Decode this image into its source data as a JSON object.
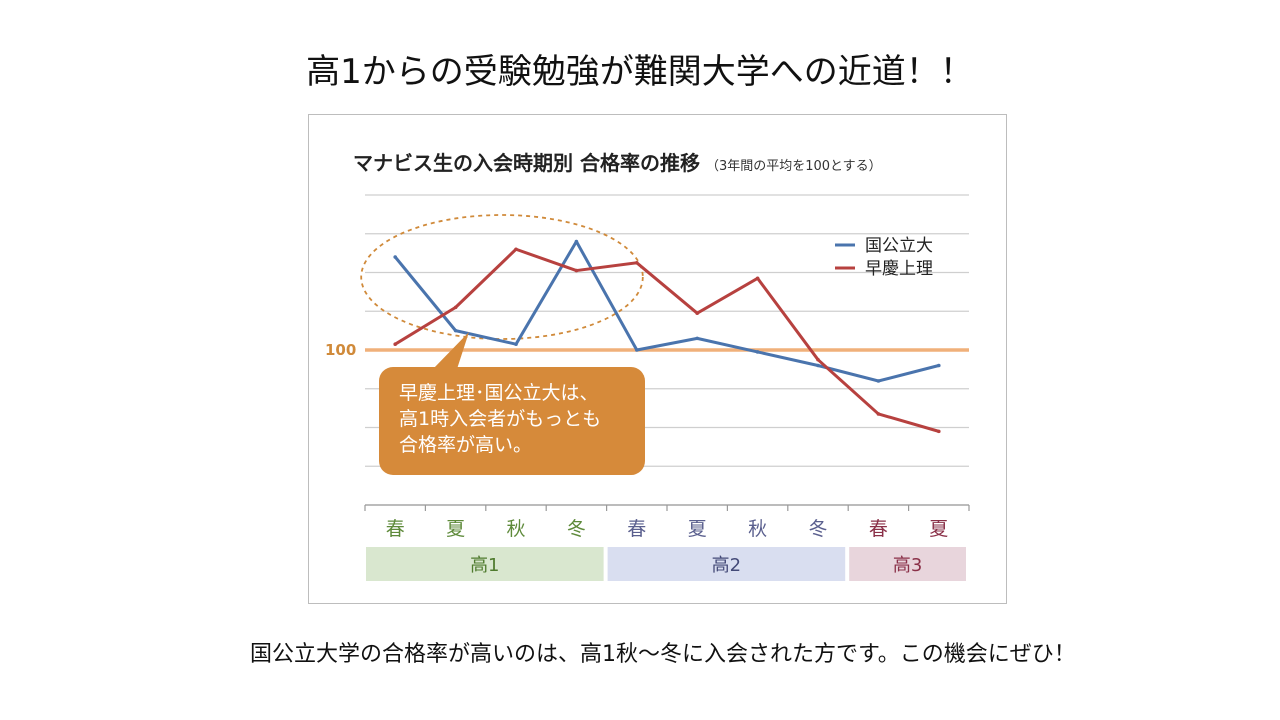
{
  "slide": {
    "title": "高1からの受験勉強が難関大学への近道！！",
    "footer": "国公立大学の合格率が高いのは、高1秋～冬に入会された方です。この機会にぜひ！"
  },
  "chart_data": {
    "type": "line",
    "title": "マナビス生の入会時期別 合格率の推移",
    "subtitle": "（3年間の平均を100とする）",
    "categories": [
      "春",
      "夏",
      "秋",
      "冬",
      "春",
      "夏",
      "秋",
      "冬",
      "春",
      "夏"
    ],
    "category_colors": [
      "#5e8a3a",
      "#5e8a3a",
      "#5e8a3a",
      "#5e8a3a",
      "#5a5f8e",
      "#5a5f8e",
      "#5a5f8e",
      "#5a5f8e",
      "#8a3048",
      "#8a3048"
    ],
    "groups": [
      {
        "label": "高1",
        "start": 0,
        "end": 3,
        "fill": "#d9e7cf",
        "text_color": "#4f7b2e"
      },
      {
        "label": "高2",
        "start": 4,
        "end": 7,
        "fill": "#d9def0",
        "text_color": "#444a78"
      },
      {
        "label": "高3",
        "start": 8,
        "end": 9,
        "fill": "#e8d5dc",
        "text_color": "#8a3048"
      }
    ],
    "series": [
      {
        "name": "国公立大",
        "color": "#4a74ad",
        "values": [
          148,
          110,
          103,
          156,
          100,
          106,
          99,
          92,
          84,
          92
        ]
      },
      {
        "name": "早慶上理",
        "color": "#b7413f",
        "values": [
          103,
          122,
          152,
          141,
          145,
          119,
          137,
          95,
          67,
          58
        ]
      }
    ],
    "ylim": [
      20,
      180
    ],
    "yticks": [
      20,
      40,
      60,
      80,
      100,
      120,
      140,
      160,
      180
    ],
    "reference_line": {
      "value": 100,
      "label": "100",
      "color": "#f0b07a"
    },
    "grid": true,
    "legend_position": "top-right",
    "highlight_ellipse": {
      "x_from": 0,
      "x_to": 4,
      "color": "#d08a3a"
    },
    "callout": {
      "lines": [
        "早慶上理･国公立大は、",
        "高1時入会者がもっとも",
        "合格率が高い。"
      ],
      "fill": "#d68a3a",
      "text_color": "#ffffff"
    }
  }
}
